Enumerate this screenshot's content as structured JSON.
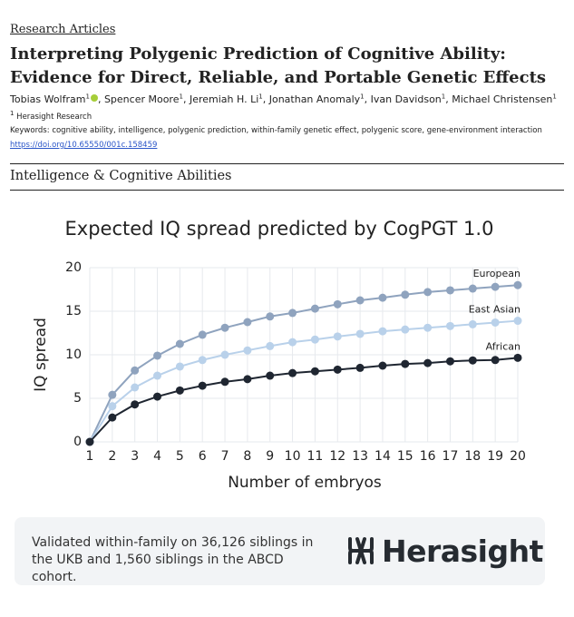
{
  "header": {
    "section": "Research Articles",
    "title": "Interpreting Polygenic Prediction of Cognitive Ability: Evidence for Direct, Reliable, and Portable Genetic Effects",
    "authors": [
      {
        "name": "Tobias Wolfram",
        "affiliation": "1"
      },
      {
        "name": "Spencer Moore",
        "affiliation": "1"
      },
      {
        "name": "Jeremiah H. Li",
        "affiliation": "1"
      },
      {
        "name": "Jonathan Anomaly",
        "affiliation": "1"
      },
      {
        "name": "Ivan Davidson",
        "affiliation": "1"
      },
      {
        "name": "Michael Christensen",
        "affiliation": "1"
      }
    ],
    "affiliation": {
      "mark": "1",
      "name": "Herasight Research"
    },
    "keywords_label": "Keywords:",
    "keywords": "cognitive ability, intelligence, polygenic prediction, within-family genetic effect, polygenic score, gene-environment interaction",
    "doi": "https://doi.org/10.65550/001c.158459",
    "category": "Intelligence & Cognitive Abilities"
  },
  "chart_data": {
    "type": "line",
    "title": "Expected IQ spread predicted by CogPGT 1.0",
    "x_label": "Number of embryos",
    "y_label": "IQ spread",
    "x": [
      1,
      2,
      3,
      4,
      5,
      6,
      7,
      8,
      9,
      10,
      11,
      12,
      13,
      14,
      15,
      16,
      17,
      18,
      19,
      20
    ],
    "xlim": [
      1,
      20
    ],
    "xticks": [
      1,
      2,
      3,
      4,
      5,
      6,
      7,
      8,
      9,
      10,
      11,
      12,
      13,
      14,
      15,
      16,
      17,
      18,
      19,
      20
    ],
    "ylim": [
      0,
      20
    ],
    "yticks": [
      0,
      5,
      10,
      15,
      20
    ],
    "grid": true,
    "series": [
      {
        "name": "European",
        "color": "#8fa3be",
        "values": [
          0,
          5.4,
          8.2,
          9.9,
          11.25,
          12.3,
          13.1,
          13.75,
          14.4,
          14.8,
          15.3,
          15.8,
          16.25,
          16.55,
          16.9,
          17.2,
          17.4,
          17.6,
          17.8,
          18.0
        ]
      },
      {
        "name": "East Asian",
        "color": "#b9d1ea",
        "values": [
          0,
          4.1,
          6.25,
          7.6,
          8.65,
          9.4,
          10.0,
          10.5,
          11.0,
          11.45,
          11.75,
          12.1,
          12.4,
          12.7,
          12.9,
          13.1,
          13.3,
          13.5,
          13.7,
          13.9
        ]
      },
      {
        "name": "African",
        "color": "#1f2631",
        "values": [
          0,
          2.8,
          4.3,
          5.2,
          5.9,
          6.45,
          6.9,
          7.2,
          7.6,
          7.9,
          8.1,
          8.3,
          8.5,
          8.75,
          8.95,
          9.05,
          9.25,
          9.35,
          9.4,
          9.65
        ]
      }
    ]
  },
  "footer": {
    "text": "Validated within-family on 36,126 siblings in the UKB and 1,560 siblings in the ABCD cohort.",
    "logo": "Herasight"
  }
}
